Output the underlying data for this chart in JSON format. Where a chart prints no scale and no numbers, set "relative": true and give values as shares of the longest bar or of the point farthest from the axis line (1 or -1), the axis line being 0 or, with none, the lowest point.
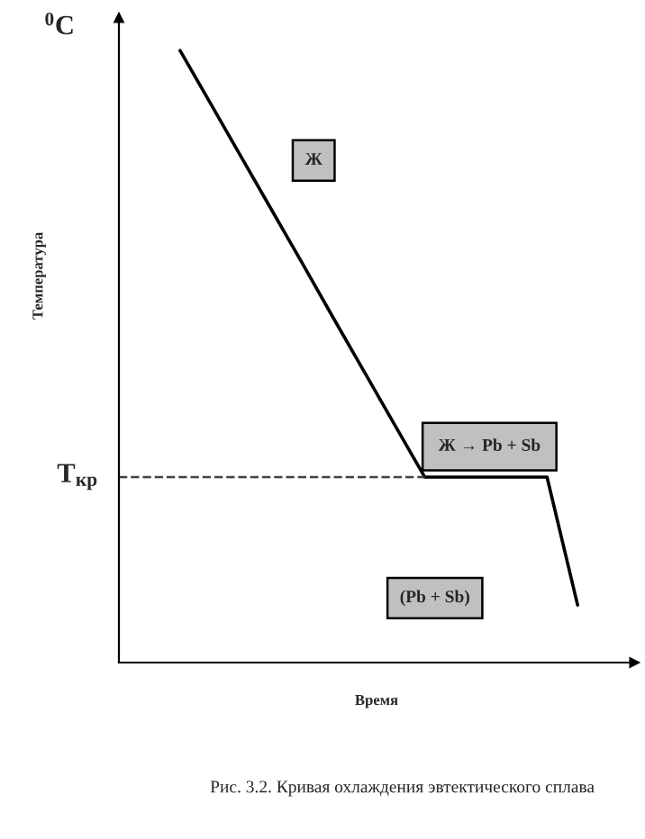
{
  "chart_data": {
    "type": "line",
    "relative": true,
    "xlabel": "Время",
    "ylabel": "Температура",
    "categories": [
      null,
      null,
      null,
      null,
      null,
      null,
      null,
      null,
      null,
      null,
      null,
      null,
      null,
      null,
      null,
      null
    ],
    "series": [
      {
        "color": "#000000",
        "values": [
          null,
          null,
          1.0,
          0.913,
          0.826,
          0.739,
          0.652,
          0.564,
          0.477,
          0.39,
          0.303,
          0.303,
          0.303,
          0.303,
          0.303,
          0.094
        ]
      }
    ],
    "ref_lines": [
      {
        "axis": "y",
        "value": 0.303,
        "label": "T$_{кр}$",
        "color": "#404040",
        "line_style": "dashed"
      }
    ],
    "annotations": [
      "$^{0}$C",
      "Ж",
      "Ж → Pb + Sb",
      "(Pb + Sb)",
      "Рис. 3.2. Кривая охлаждения эвтектического сплава"
    ],
    "marker": "none",
    "line_style": "solid"
  }
}
